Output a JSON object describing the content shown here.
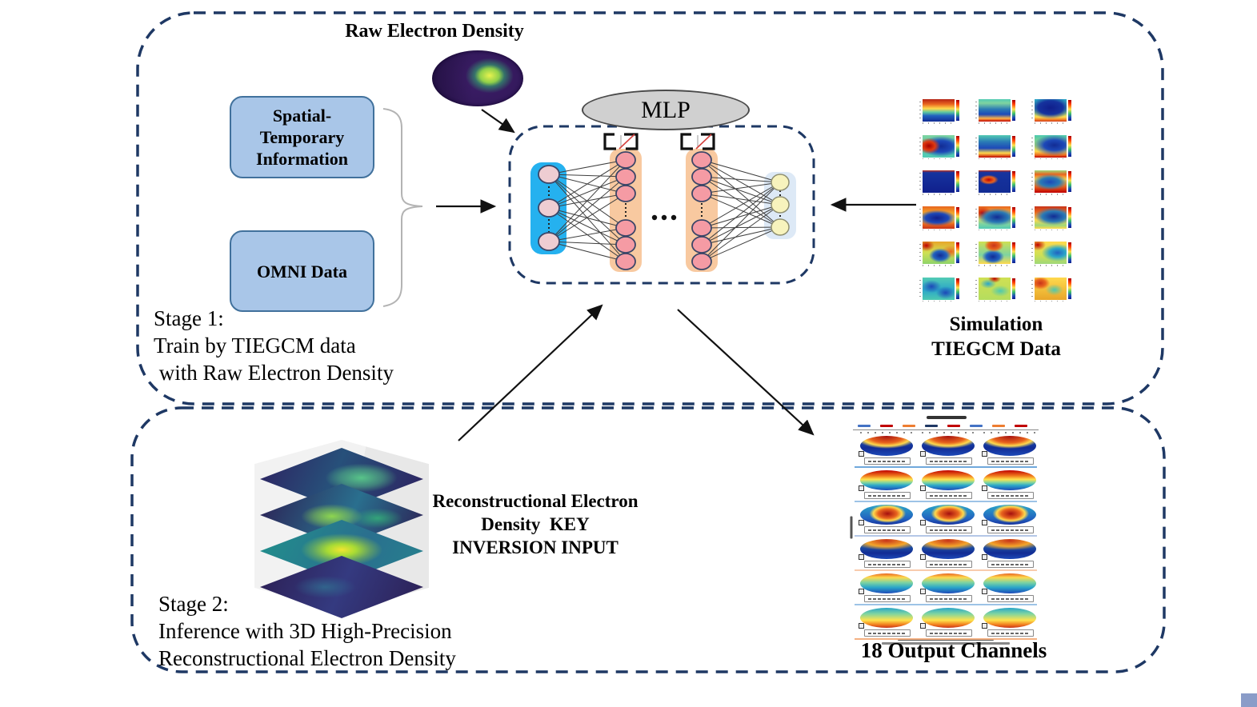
{
  "stage1": {
    "label": "Stage 1:\nTrain by TIEGCM data\n with Raw Electron Density",
    "raw_density_title": "Raw Electron Density",
    "spatial_box_label": "Spatial-\nTemporary\nInformation",
    "omni_box_label": "OMNI Data",
    "mlp_label": "MLP",
    "sim_label": "Simulation\nTIEGCM Data"
  },
  "stage2": {
    "label": "Stage 2:\nInference with 3D High-Precision\nReconstructional Electron Density",
    "recon_label": "Reconstructional Electron\nDensity  KEY\nINVERSION INPUT",
    "output_label": "18 Output Channels"
  },
  "colors": {
    "dashed_border": "#1e3864",
    "info_box_fill": "#a9c6e8",
    "info_box_border": "#41719c",
    "mlp_ellipse_fill": "#d0d0d0",
    "input_layer": "#25b1ef",
    "hidden_layer": "#f8c9a0",
    "output_layer": "#dde9f6",
    "input_node": "#eecdd2",
    "hidden_node": "#f59ba4",
    "output_node": "#f7f3bd",
    "dropout_slash": "#d6433f",
    "arrow": "#111111",
    "brace": "#b3b3b3",
    "corner_decoration": "#8a9cc8"
  },
  "sim_grid": {
    "cells": [
      "linear-gradient(180deg,#b42314 0%,#e8641e 22%,#ffd94d 42%,#5fc9a0 58%,#2262c0 74%,#122c94 100%)",
      "linear-gradient(180deg,#53cbb4 0%,#7fd4a0 18%,#2a7ab5 45%,#1d49b8 68%,#ffb347 86%,#c00000 100%)",
      "radial-gradient(26px 14px at 50% 38%,#101f8c 0%,#16339e 60%,rgba(22,51,158,0) 100%),linear-gradient(180deg,#2aa6c9 0%,#4dc9b0 40%,#9fd87a 62%,#ffd94d 80%,#e8641e 95%,#c8341a 100%)",
      "radial-gradient(14px 10px at 20% 48%,#a50000 0%,#e03a10 55%,rgba(224,58,16,0) 100%),radial-gradient(26px 13px at 58% 50%,#122c94 0%,#1d49b8 55%,rgba(29,73,184,0) 100%),linear-gradient(180deg,#7fd4a0 0%,#4dc9b0 50%,#53cbb4 100%)",
      "linear-gradient(180deg,#53cbb4 0%,#2a7ab5 30%,#1d49b8 58%,#ffd94d 80%,#c00000 100%)",
      "radial-gradient(26px 13px at 62% 45%,#122c94 0%,#1d49b8 50%,rgba(29,73,184,0) 100%),linear-gradient(180deg,#4dc9b0 0%,#9fd87a 45%,#ffd94d 72%,#e8641e 90%,#c00000 100%)",
      "linear-gradient(180deg,#c8341a 0%,#16339e 10%,#101f8c 100%)",
      "radial-gradient(12px 6px at 32% 42%,#c00000 0%,#e8641e 60%,rgba(232,100,30,0) 100%),linear-gradient(180deg,#c8341a 0%,#16339e 9%,#122c94 100%)",
      "radial-gradient(22px 10px at 48% 52%,#1d49b8 0%,#2a7ab5 55%,rgba(42,122,181,0) 100%),linear-gradient(180deg,#9fd87a 0%,#e8641e 18%,#ffd94d 40%,#e8641e 72%,#c00000 100%)",
      "radial-gradient(24px 10px at 45% 52%,#101f8c 0%,#1d49b8 60%,rgba(29,73,184,0) 100%),linear-gradient(180deg,#e8641e 0%,#f4a62a 30%,#ffd94d 55%,#e8641e 80%,#c8341a 100%)",
      "radial-gradient(24px 11px at 58% 48%,#122c94 0%,#2a7ab5 60%,rgba(42,122,181,0) 100%),radial-gradient(12px 8px at 12% 30%,#c00000 0%,rgba(192,0,0,0) 100%),linear-gradient(180deg,#e8641e 0%,#ffd94d 45%,#7fd4a0 78%,#53cbb4 100%)",
      "radial-gradient(24px 11px at 60% 45%,#122c94 0%,#2a7ab5 60%,rgba(42,122,181,0) 100%),linear-gradient(180deg,#c8341a 0%,#e8641e 25%,#ffd94d 60%,#9fd87a 85%,#ffd94d 100%)",
      "radial-gradient(14px 9px at 55% 62%,#122c94 0%,#2262c0 60%,rgba(34,98,192,0) 100%),radial-gradient(10px 7px at 12% 18%,#c00000 0%,rgba(192,0,0,0) 100%),radial-gradient(12px 8px at 88% 45%,#e8641e 0%,rgba(232,100,30,0) 100%),linear-gradient(180deg,#e8a62a 0%,#cfe053 50%,#8fd46a 100%)",
      "radial-gradient(12px 8px at 48% 18%,#c8341a 0%,#e8641e 60%,rgba(232,100,30,0) 100%),radial-gradient(14px 9px at 45% 68%,#122c94 0%,#2262c0 60%,rgba(34,98,192,0) 100%),linear-gradient(180deg,#cfe053 0%,#7fd4a0 60%,#ffd94d 100%)",
      "radial-gradient(20px 11px at 72% 50%,#2262c0 0%,#2aa6c9 50%,rgba(42,166,201,0) 100%),radial-gradient(10px 7px at 10% 15%,#c00000 0%,rgba(192,0,0,0) 100%),linear-gradient(180deg,#ffd94d 0%,#cfe053 60%,#9fd87a 100%)",
      "radial-gradient(12px 8px at 28% 40%,#1d49b8 0%,rgba(29,73,184,0) 100%),radial-gradient(12px 8px at 72% 68%,#1d49b8 0%,rgba(29,73,184,0) 100%),linear-gradient(180deg,#53cbb4 0%,#2aa6c9 55%,#4dc9b0 100%)",
      "radial-gradient(10px 6px at 30% 28%,#2aa6c9 0%,rgba(42,166,201,0) 100%),radial-gradient(12px 7px at 68% 60%,#4dc9b0 0%,rgba(77,201,176,0) 100%),radial-gradient(8px 5px at 50% 6%,#c00000 0%,rgba(192,0,0,0) 100%),linear-gradient(180deg,#cfe053 0%,#b5dd5e 100%)",
      "radial-gradient(12px 8px at 18% 25%,#c8341a 0%,#e8641e 55%,rgba(232,100,30,0) 100%),radial-gradient(11px 7px at 62% 55%,#4dc9b0 0%,rgba(77,201,176,0) 100%),linear-gradient(180deg,#ffd94d 0%,#e8a62a 100%)"
    ]
  },
  "output_grid": {
    "legend_colors": [
      "#4472c4",
      "#c00000",
      "#ed7d31",
      "#1f3864",
      "#c00000",
      "#4472c4",
      "#ed7d31",
      "#c00000"
    ],
    "rows": [
      {
        "bg": "radial-gradient(40px 16px at 50% 0%,#a50f0f 0%,#e8641e 55%,#ffd94d 78%,rgba(255,217,77,0) 100%),linear-gradient(180deg,#2262c0 0%,#122c94 60%,#1d49b8 100%)",
        "underline": "#6fa8dc"
      },
      {
        "bg": "linear-gradient(180deg,#c00000 0%,#f07b1d 28%,#ffe34d 46%,#7fd4a0 62%,#2aa6c9 76%,#1d49b8 100%)",
        "underline": "#9dc3e6"
      },
      {
        "bg": "radial-gradient(26px 13px at 52% 45%,#a50f0f 0%,#e8641e 45%,#ffd94d 68%,rgba(255,217,77,0) 88%),linear-gradient(180deg,#2aa6c9 0%,#2262c0 70%,#16339e 100%)",
        "underline": "#b4c7e7"
      },
      {
        "bg": "radial-gradient(44px 12px at 50% 8%,#c8341a 0%,#f4a62a 60%,rgba(244,166,42,0) 100%),linear-gradient(180deg,#2a7ab5 0%,#122c94 70%,#1d49b8 100%)",
        "underline": "#f8cbad"
      },
      {
        "bg": "linear-gradient(180deg,#e8641e 0%,#ffd94d 20%,#7fd4a0 45%,#2aa6c9 70%,#1d49b8 100%)",
        "underline": "#9dc3e6"
      },
      {
        "bg": "linear-gradient(180deg,#2aa6c9 0%,#7fd4a0 30%,#ffe34d 62%,#f07b1d 85%,#c8341a 100%)",
        "underline": "#f4b183"
      }
    ]
  },
  "stack_layers": [
    "radial-gradient(60px 24px at 62% 48%,#58c489 0%,rgba(88,196,137,.5) 45%,rgba(88,196,137,0) 75%),linear-gradient(115deg,#2e2160 0%,#27507a 45%,#2e2160 100%)",
    "radial-gradient(55px 22px at 44% 52%,#8ed64f 0%,rgba(142,214,79,.5) 40%,rgba(142,214,79,0) 70%),radial-gradient(45px 18px at 72% 55%,rgba(53,183,121,.8) 0%,rgba(53,183,121,0) 70%),linear-gradient(115deg,#2c1e52 0%,#2a6f8e 55%,#2c1e52 100%)",
    "radial-gradient(60px 24px at 50% 48%,#f2e531 0%,#a8db34 30%,rgba(168,219,52,.4) 60%,rgba(168,219,52,0) 85%),linear-gradient(115deg,#21918c 0%,#2a6f8e 60%,#26828e 100%)",
    "radial-gradient(55px 20px at 40% 50%,rgba(49,104,142,.9) 0%,rgba(49,104,142,0) 70%),linear-gradient(115deg,#2c1e52 0%,#343a80 50%,#2c1e52 100%)"
  ]
}
